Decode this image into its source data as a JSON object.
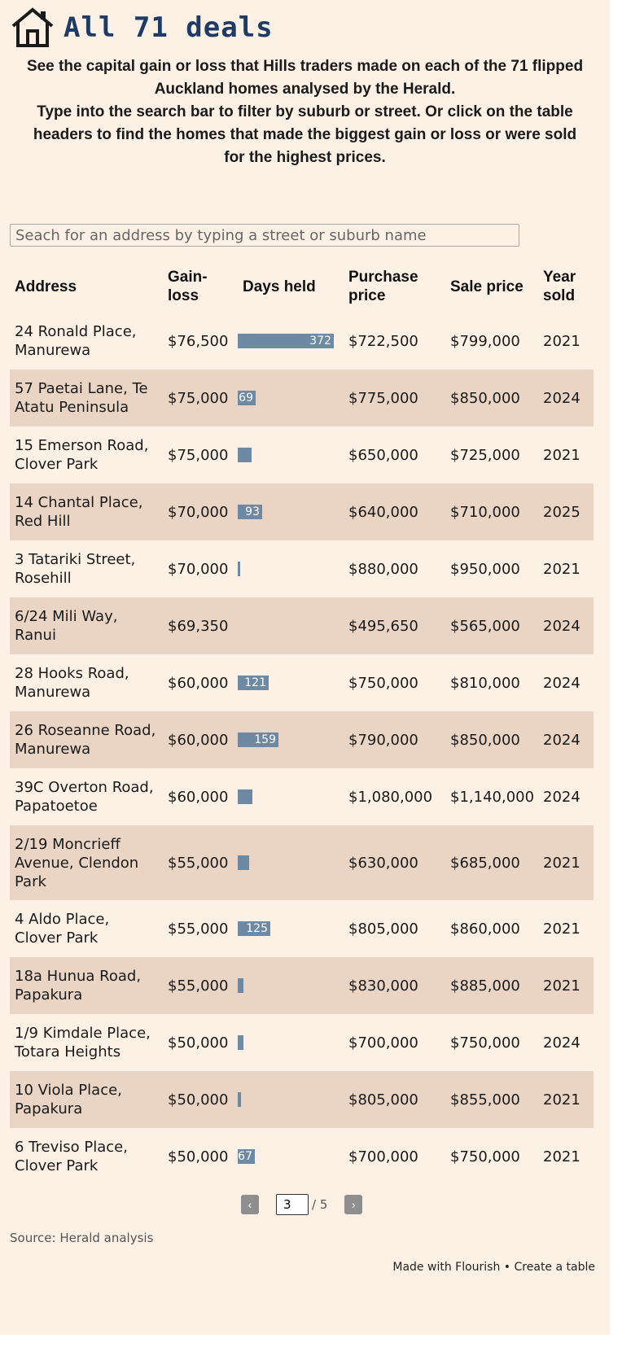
{
  "title": "All 71 deals",
  "intro": [
    "See the capital gain or loss that Hills traders made on each of the 71 flipped Auckland homes analysed by the Herald.",
    "Type into the search bar to filter by suburb or street. Or click on the table headers to find the homes that made the biggest gain or loss or were sold for the highest prices."
  ],
  "search": {
    "placeholder": "Seach for an address by typing a street or suburb name",
    "value": ""
  },
  "table": {
    "headers": [
      "Address",
      "Gain-loss",
      "Days held",
      "Purchase price",
      "Sale price",
      "Year sold"
    ],
    "bar_color": "#6d89a3",
    "days_held_max": 372,
    "rows": [
      {
        "address": "24 Ronald Place, Manurewa",
        "gain": "$76,500",
        "days_held": 372,
        "days_label": "372",
        "purchase": "$722,500",
        "sale": "$799,000",
        "year": "2021"
      },
      {
        "address": "57 Paetai Lane, Te Atatu Peninsula",
        "gain": "$75,000",
        "days_held": 69,
        "days_label": "69",
        "purchase": "$775,000",
        "sale": "$850,000",
        "year": "2024"
      },
      {
        "address": "15 Emerson Road, Clover Park",
        "gain": "$75,000",
        "days_held": 55,
        "days_label": "",
        "purchase": "$650,000",
        "sale": "$725,000",
        "year": "2021"
      },
      {
        "address": "14 Chantal Place, Red Hill",
        "gain": "$70,000",
        "days_held": 93,
        "days_label": "93",
        "purchase": "$640,000",
        "sale": "$710,000",
        "year": "2025"
      },
      {
        "address": "3 Tatariki Street, Rosehill",
        "gain": "$70,000",
        "days_held": 8,
        "days_label": "",
        "purchase": "$880,000",
        "sale": "$950,000",
        "year": "2021"
      },
      {
        "address": "6/24 Mili Way, Ranui",
        "gain": "$69,350",
        "days_held": 0,
        "days_label": "",
        "purchase": "$495,650",
        "sale": "$565,000",
        "year": "2024"
      },
      {
        "address": "28 Hooks Road, Manurewa",
        "gain": "$60,000",
        "days_held": 121,
        "days_label": "121",
        "purchase": "$750,000",
        "sale": "$810,000",
        "year": "2024"
      },
      {
        "address": "26 Roseanne Road, Manurewa",
        "gain": "$60,000",
        "days_held": 159,
        "days_label": "159",
        "purchase": "$790,000",
        "sale": "$850,000",
        "year": "2024"
      },
      {
        "address": "39C Overton Road, Papatoetoe",
        "gain": "$60,000",
        "days_held": 58,
        "days_label": "",
        "purchase": "$1,080,000",
        "sale": "$1,140,000",
        "year": "2024"
      },
      {
        "address": "2/19 Moncrieff Avenue, Clendon Park",
        "gain": "$55,000",
        "days_held": 45,
        "days_label": "",
        "purchase": "$630,000",
        "sale": "$685,000",
        "year": "2021",
        "tall": true
      },
      {
        "address": "4 Aldo Place, Clover Park",
        "gain": "$55,000",
        "days_held": 125,
        "days_label": "125",
        "purchase": "$805,000",
        "sale": "$860,000",
        "year": "2021"
      },
      {
        "address": "18a Hunua Road, Papakura",
        "gain": "$55,000",
        "days_held": 22,
        "days_label": "",
        "purchase": "$830,000",
        "sale": "$885,000",
        "year": "2021"
      },
      {
        "address": "1/9 Kimdale Place, Totara Heights",
        "gain": "$50,000",
        "days_held": 22,
        "days_label": "",
        "purchase": "$700,000",
        "sale": "$750,000",
        "year": "2024"
      },
      {
        "address": "10 Viola Place, Papakura",
        "gain": "$50,000",
        "days_held": 14,
        "days_label": "",
        "purchase": "$805,000",
        "sale": "$855,000",
        "year": "2021"
      },
      {
        "address": "6 Treviso Place, Clover Park",
        "gain": "$50,000",
        "days_held": 67,
        "days_label": "67",
        "purchase": "$700,000",
        "sale": "$750,000",
        "year": "2021"
      }
    ]
  },
  "pagination": {
    "prev": "‹",
    "next": "›",
    "current": "3",
    "total": "/ 5"
  },
  "source": "Source: Herald analysis",
  "footer": {
    "made_with": "Made with Flourish",
    "separator": " • ",
    "create": "Create a table"
  },
  "icons": {
    "title_icon": "house-icon"
  },
  "colors": {
    "background": "#fdf1e6",
    "row_shade": "#ead5c4",
    "title": "#1d3b66"
  }
}
